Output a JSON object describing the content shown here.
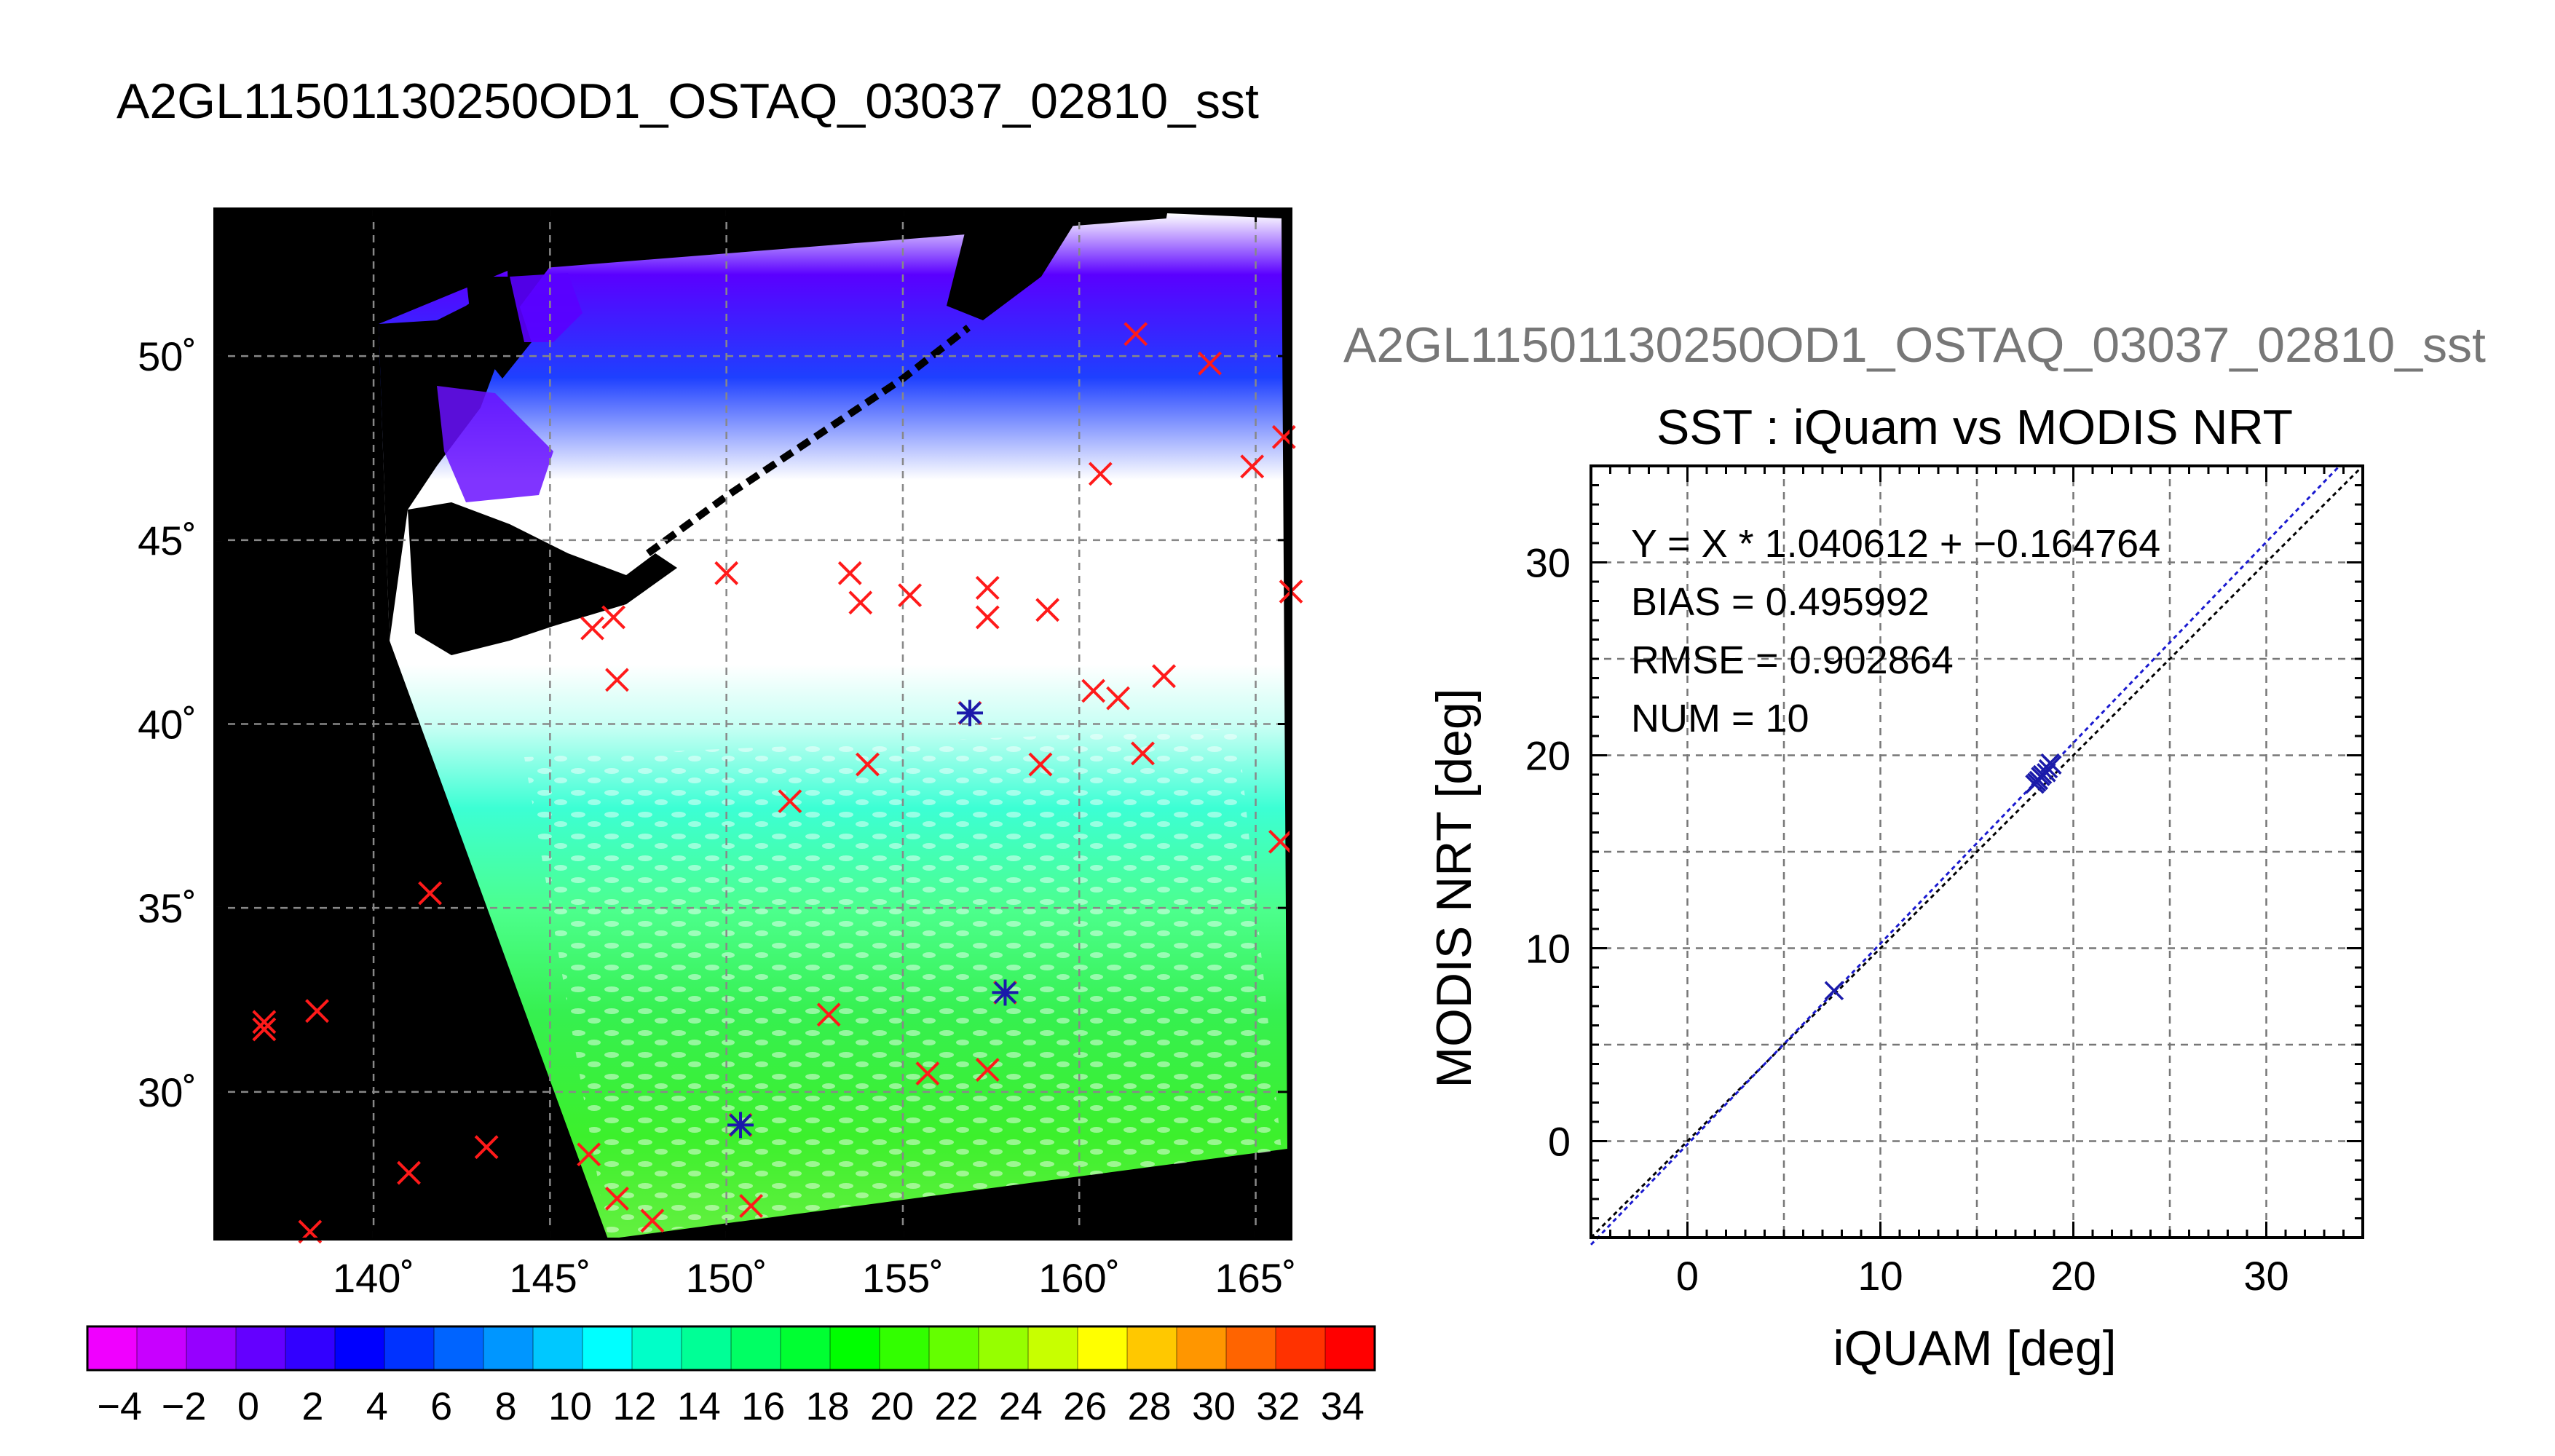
{
  "title": "A2GL11501130250OD1_OSTAQ_03037_02810_sst",
  "colors": {
    "land": "#000000",
    "cloud": "#ffffff",
    "match_marker": "#ff1a1a",
    "valid_marker": "#1a1aaa",
    "fit_line": "#1a1ad0",
    "identity_line": "#000000",
    "overtitle": "#777777"
  },
  "chart_data": [
    {
      "type": "heatmap",
      "title": "",
      "x_tick_labels": [
        "140˚",
        "145˚",
        "150˚",
        "155˚",
        "160˚",
        "165˚"
      ],
      "y_tick_labels": [
        "30˚",
        "35˚",
        "40˚",
        "45˚",
        "50˚"
      ],
      "x_ticks": [
        140,
        145,
        150,
        155,
        160,
        165
      ],
      "y_ticks": [
        30,
        35,
        40,
        45,
        50
      ],
      "xlim": [
        135.5,
        166
      ],
      "ylim": [
        26,
        54
      ],
      "grid": true,
      "colorbar": {
        "vmin": -5,
        "vmax": 35,
        "tick_labels": [
          "−4",
          "−2",
          "0",
          "2",
          "4",
          "6",
          "8",
          "10",
          "12",
          "14",
          "16",
          "18",
          "20",
          "22",
          "24",
          "26",
          "28",
          "30",
          "32",
          "34"
        ],
        "tick_values": [
          -4,
          -2,
          0,
          2,
          4,
          6,
          8,
          10,
          12,
          14,
          16,
          18,
          20,
          22,
          24,
          26,
          28,
          30,
          32,
          34
        ],
        "colors": [
          "#f000ff",
          "#c800ff",
          "#9600ff",
          "#6400ff",
          "#3200ff",
          "#0000ff",
          "#0032ff",
          "#0064ff",
          "#0096ff",
          "#00c8ff",
          "#00ffff",
          "#00ffc8",
          "#00ff96",
          "#00ff64",
          "#00ff32",
          "#00ff00",
          "#32ff00",
          "#64ff00",
          "#96ff00",
          "#c8ff00",
          "#ffff00",
          "#ffc800",
          "#ff9600",
          "#ff6400",
          "#ff3200",
          "#ff0000"
        ]
      },
      "matchup_points": [
        [
          136.9,
          31.9
        ],
        [
          136.9,
          31.7
        ],
        [
          138.4,
          32.2
        ],
        [
          138.2,
          26.2
        ],
        [
          141.0,
          27.8
        ],
        [
          141.6,
          35.4
        ],
        [
          143.2,
          28.5
        ],
        [
          146.1,
          28.3
        ],
        [
          146.9,
          27.1
        ],
        [
          147.9,
          26.5
        ],
        [
          150.7,
          26.9
        ],
        [
          150.4,
          29.1
        ],
        [
          152.9,
          32.1
        ],
        [
          155.7,
          30.5
        ],
        [
          157.4,
          30.6
        ],
        [
          157.9,
          32.7
        ],
        [
          151.8,
          37.9
        ],
        [
          154.0,
          38.9
        ],
        [
          158.9,
          38.9
        ],
        [
          161.8,
          39.2
        ],
        [
          156.9,
          40.3
        ],
        [
          160.4,
          40.9
        ],
        [
          161.1,
          40.7
        ],
        [
          162.4,
          41.3
        ],
        [
          146.9,
          41.2
        ],
        [
          146.2,
          42.6
        ],
        [
          146.8,
          42.9
        ],
        [
          150.0,
          44.1
        ],
        [
          153.5,
          44.1
        ],
        [
          153.8,
          43.3
        ],
        [
          155.2,
          43.5
        ],
        [
          157.4,
          43.7
        ],
        [
          157.4,
          42.9
        ],
        [
          159.1,
          43.1
        ],
        [
          160.6,
          46.8
        ],
        [
          161.6,
          50.6
        ],
        [
          163.7,
          49.8
        ],
        [
          164.9,
          47.0
        ],
        [
          165.8,
          47.8
        ],
        [
          166.0,
          43.6
        ],
        [
          165.7,
          36.8
        ]
      ],
      "valid_points": [
        [
          150.4,
          29.1
        ],
        [
          157.9,
          32.7
        ],
        [
          156.9,
          40.3
        ]
      ]
    },
    {
      "type": "scatter",
      "overtitle": "A2GL11501130250OD1_OSTAQ_03037_02810_sst",
      "title": "SST : iQuam vs MODIS NRT",
      "xlabel": "iQUAM [deg]",
      "ylabel": "MODIS NRT [deg]",
      "xlim": [
        -5,
        35
      ],
      "ylim": [
        -5,
        35
      ],
      "x_ticks": [
        0,
        10,
        20,
        30
      ],
      "y_ticks": [
        0,
        10,
        20,
        30
      ],
      "x_tick_labels": [
        "0",
        "10",
        "20",
        "30"
      ],
      "y_tick_labels": [
        "0",
        "10",
        "20",
        "30"
      ],
      "grid": true,
      "annotations": [
        "Y = X * 1.040612 + −0.164764",
        "BIAS = 0.495992",
        "RMSE = 0.902864",
        "NUM = 10"
      ],
      "fit": {
        "slope": 1.040612,
        "intercept": -0.164764
      },
      "points": [
        {
          "x": 7.6,
          "y": 7.8
        },
        {
          "x": 18.0,
          "y": 18.5
        },
        {
          "x": 18.3,
          "y": 18.9
        },
        {
          "x": 18.7,
          "y": 19.3
        },
        {
          "x": 18.8,
          "y": 19.6
        },
        {
          "x": 18.6,
          "y": 19.1
        },
        {
          "x": 18.4,
          "y": 19.0
        },
        {
          "x": 18.2,
          "y": 18.7
        },
        {
          "x": 18.9,
          "y": 19.5
        },
        {
          "x": 18.1,
          "y": 18.6
        }
      ]
    }
  ]
}
